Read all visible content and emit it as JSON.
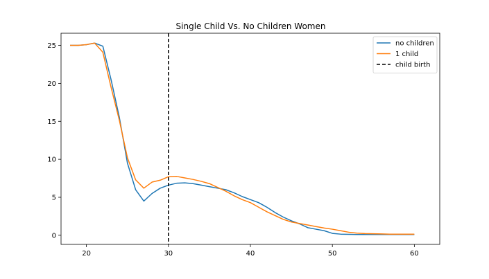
{
  "chart_data": {
    "type": "line",
    "title": "Single Child Vs. No Children Women",
    "xlabel": "",
    "ylabel": "",
    "xlim": [
      16.9,
      63.1
    ],
    "ylim": [
      -1.2,
      26.6
    ],
    "xticks": [
      20,
      30,
      40,
      50,
      60
    ],
    "yticks": [
      0,
      5,
      10,
      15,
      20,
      25
    ],
    "grid": false,
    "legend_position": "top-right",
    "series": [
      {
        "name": "no children",
        "color": "#1f77b4",
        "x": [
          18,
          19,
          20,
          21,
          22,
          23,
          24,
          25,
          26,
          27,
          28,
          29,
          30,
          31,
          32,
          33,
          34,
          35,
          36,
          37,
          38,
          39,
          40,
          41,
          42,
          43,
          44,
          45,
          46,
          47,
          48,
          49,
          50,
          51,
          52,
          53,
          54,
          55,
          56,
          57,
          58,
          59,
          60
        ],
        "y": [
          25.0,
          25.0,
          25.1,
          25.3,
          24.9,
          20.5,
          15.6,
          9.5,
          6.0,
          4.5,
          5.5,
          6.2,
          6.6,
          6.85,
          6.9,
          6.8,
          6.6,
          6.4,
          6.2,
          6.0,
          5.6,
          5.1,
          4.7,
          4.3,
          3.7,
          3.0,
          2.4,
          1.9,
          1.5,
          1.0,
          0.8,
          0.6,
          0.25,
          0.15,
          0.12,
          0.1,
          0.1,
          0.1,
          0.1,
          0.1,
          0.1,
          0.1,
          0.1
        ]
      },
      {
        "name": "1 child",
        "color": "#ff7f0e",
        "x": [
          18,
          19,
          20,
          21,
          22,
          23,
          24,
          25,
          26,
          27,
          28,
          29,
          30,
          31,
          32,
          33,
          34,
          35,
          36,
          37,
          38,
          39,
          40,
          41,
          42,
          43,
          44,
          45,
          46,
          47,
          48,
          49,
          50,
          51,
          52,
          53,
          54,
          55,
          56,
          57,
          58,
          59,
          60
        ],
        "y": [
          25.0,
          25.0,
          25.1,
          25.3,
          24.1,
          19.5,
          15.2,
          10.2,
          7.3,
          6.2,
          7.0,
          7.25,
          7.7,
          7.75,
          7.55,
          7.35,
          7.1,
          6.8,
          6.3,
          5.8,
          5.2,
          4.7,
          4.3,
          3.7,
          3.1,
          2.6,
          2.1,
          1.75,
          1.55,
          1.35,
          1.15,
          0.95,
          0.8,
          0.6,
          0.4,
          0.28,
          0.22,
          0.2,
          0.18,
          0.15,
          0.15,
          0.15,
          0.15
        ]
      }
    ],
    "vlines": [
      {
        "name": "child birth",
        "x": 30,
        "color": "#000000",
        "style": "dashed"
      }
    ]
  }
}
